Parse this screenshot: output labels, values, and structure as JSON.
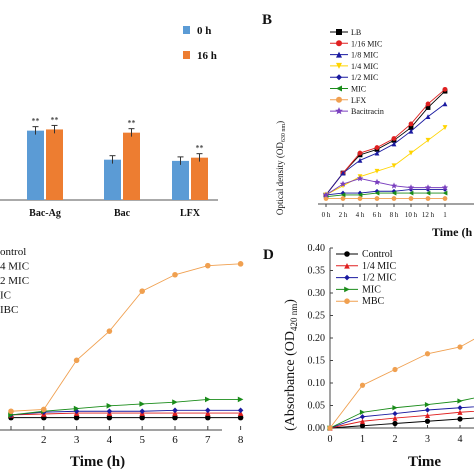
{
  "colors": {
    "blue": "#5b9bd5",
    "orange": "#ed7d31",
    "black": "#000000",
    "red": "#e02020",
    "navy": "#1a1aa0",
    "yellow": "#ffd400",
    "green": "#1a8c1a",
    "purple": "#7a3fbf",
    "gray": "#9b9b9b",
    "peach": "#f0a050"
  },
  "chart_data": [
    {
      "id": "A",
      "type": "bar",
      "panel_letter": "",
      "categories": [
        "Bac-Ag",
        "Bac",
        "LFX"
      ],
      "series": [
        {
          "name": "0 h",
          "color": "#5b9bd5",
          "values": [
            1.72,
            1.0,
            0.97
          ],
          "sig": [
            "**",
            "",
            ""
          ]
        },
        {
          "name": "16 h",
          "color": "#ed7d31",
          "values": [
            1.75,
            1.67,
            1.05
          ],
          "sig": [
            "**",
            "**",
            "**"
          ]
        }
      ],
      "ylim": [
        0,
        3.1
      ],
      "legend": [
        "0 h",
        "16 h"
      ],
      "legend_position": "top-right"
    },
    {
      "id": "B",
      "type": "line",
      "panel_letter": "B",
      "ylabel": "Optical density (OD",
      "ylabel_sub": "630 nm",
      "xlabel": "Time (h",
      "categories": [
        "0 h",
        "2 h",
        "4 h",
        "6 h",
        "8 h",
        "10 h",
        "12 h",
        "1"
      ],
      "ylim": [
        0,
        1.0
      ],
      "series": [
        {
          "name": "LB",
          "color": "#000000",
          "marker": "square",
          "values": [
            0.05,
            0.17,
            0.27,
            0.3,
            0.35,
            0.42,
            0.53,
            0.62
          ]
        },
        {
          "name": "1/16 MIC",
          "color": "#e02020",
          "marker": "circle",
          "values": [
            0.05,
            0.17,
            0.28,
            0.31,
            0.36,
            0.44,
            0.55,
            0.63
          ]
        },
        {
          "name": "1/8 MIC",
          "color": "#1a1aa0",
          "marker": "triangle",
          "values": [
            0.05,
            0.17,
            0.24,
            0.28,
            0.33,
            0.4,
            0.48,
            0.55
          ]
        },
        {
          "name": "1/4 MIC",
          "color": "#ffd400",
          "marker": "tri-down",
          "values": [
            0.05,
            0.1,
            0.15,
            0.18,
            0.21,
            0.28,
            0.35,
            0.42
          ]
        },
        {
          "name": "1/2 MIC",
          "color": "#1a1aa0",
          "marker": "diamond",
          "values": [
            0.05,
            0.06,
            0.06,
            0.07,
            0.07,
            0.08,
            0.08,
            0.08
          ]
        },
        {
          "name": "MIC",
          "color": "#1a8c1a",
          "marker": "tri-left",
          "values": [
            0.04,
            0.05,
            0.05,
            0.06,
            0.06,
            0.06,
            0.06,
            0.06
          ]
        },
        {
          "name": "LFX",
          "color": "#f0a050",
          "marker": "circle",
          "values": [
            0.03,
            0.03,
            0.03,
            0.03,
            0.03,
            0.03,
            0.03,
            0.03
          ]
        },
        {
          "name": "Bacitracin",
          "color": "#7a3fbf",
          "marker": "star",
          "values": [
            0.05,
            0.11,
            0.14,
            0.12,
            0.1,
            0.09,
            0.09,
            0.09
          ]
        }
      ]
    },
    {
      "id": "C",
      "type": "line",
      "xlabel": "Time (h)",
      "x": [
        1,
        2,
        3,
        4,
        5,
        6,
        7,
        8
      ],
      "xlim": [
        1,
        8.6
      ],
      "ylim": [
        0,
        1.0
      ],
      "legend": [
        "ontrol",
        "4 MIC",
        "2 MIC",
        "IC",
        "IBC"
      ],
      "series": [
        {
          "name": "ontrol",
          "color": "#000000",
          "marker": "circle",
          "values": [
            0.035,
            0.035,
            0.035,
            0.035,
            0.035,
            0.035,
            0.035,
            0.035
          ]
        },
        {
          "name": "4 MIC",
          "color": "#e02020",
          "marker": "triangle",
          "values": [
            0.05,
            0.055,
            0.06,
            0.06,
            0.06,
            0.06,
            0.06,
            0.06
          ]
        },
        {
          "name": "2 MIC",
          "color": "#1a1aa0",
          "marker": "diamond",
          "values": [
            0.05,
            0.065,
            0.07,
            0.07,
            0.07,
            0.075,
            0.075,
            0.075
          ]
        },
        {
          "name": "IC",
          "color": "#1a8c1a",
          "marker": "tri-right",
          "values": [
            0.05,
            0.07,
            0.085,
            0.1,
            0.11,
            0.12,
            0.135,
            0.135
          ]
        },
        {
          "name": "IBC",
          "color": "#f0a050",
          "marker": "circle",
          "values": [
            0.07,
            0.08,
            0.35,
            0.51,
            0.73,
            0.82,
            0.87,
            0.88
          ]
        }
      ]
    },
    {
      "id": "D",
      "type": "line",
      "panel_letter": "D",
      "ylabel": "Absorbance (OD",
      "ylabel_sub": "420 nm",
      "xlabel": "Time",
      "yticks": [
        "0.00",
        "0.05",
        "0.10",
        "0.15",
        "0.20",
        "0.25",
        "0.30",
        "0.35",
        "0.40"
      ],
      "xticks": [
        "0",
        "1",
        "2",
        "3",
        "4"
      ],
      "ylim": [
        0,
        0.4
      ],
      "legend": [
        "Control",
        "1/4 MIC",
        "1/2 MIC",
        "MIC",
        "MBC"
      ],
      "series": [
        {
          "name": "Control",
          "color": "#000000",
          "marker": "circle",
          "values": [
            0.0,
            0.005,
            0.01,
            0.015,
            0.02,
            0.025
          ]
        },
        {
          "name": "1/4 MIC",
          "color": "#e02020",
          "marker": "triangle",
          "values": [
            0.0,
            0.015,
            0.022,
            0.028,
            0.035,
            0.04
          ]
        },
        {
          "name": "1/2 MIC",
          "color": "#1a1aa0",
          "marker": "diamond",
          "values": [
            0.0,
            0.025,
            0.032,
            0.04,
            0.045,
            0.05
          ]
        },
        {
          "name": "MIC",
          "color": "#1a8c1a",
          "marker": "tri-right",
          "values": [
            0.0,
            0.035,
            0.045,
            0.052,
            0.06,
            0.075
          ]
        },
        {
          "name": "MBC",
          "color": "#f0a050",
          "marker": "circle",
          "values": [
            0.0,
            0.095,
            0.13,
            0.165,
            0.18,
            0.22
          ]
        }
      ]
    }
  ]
}
